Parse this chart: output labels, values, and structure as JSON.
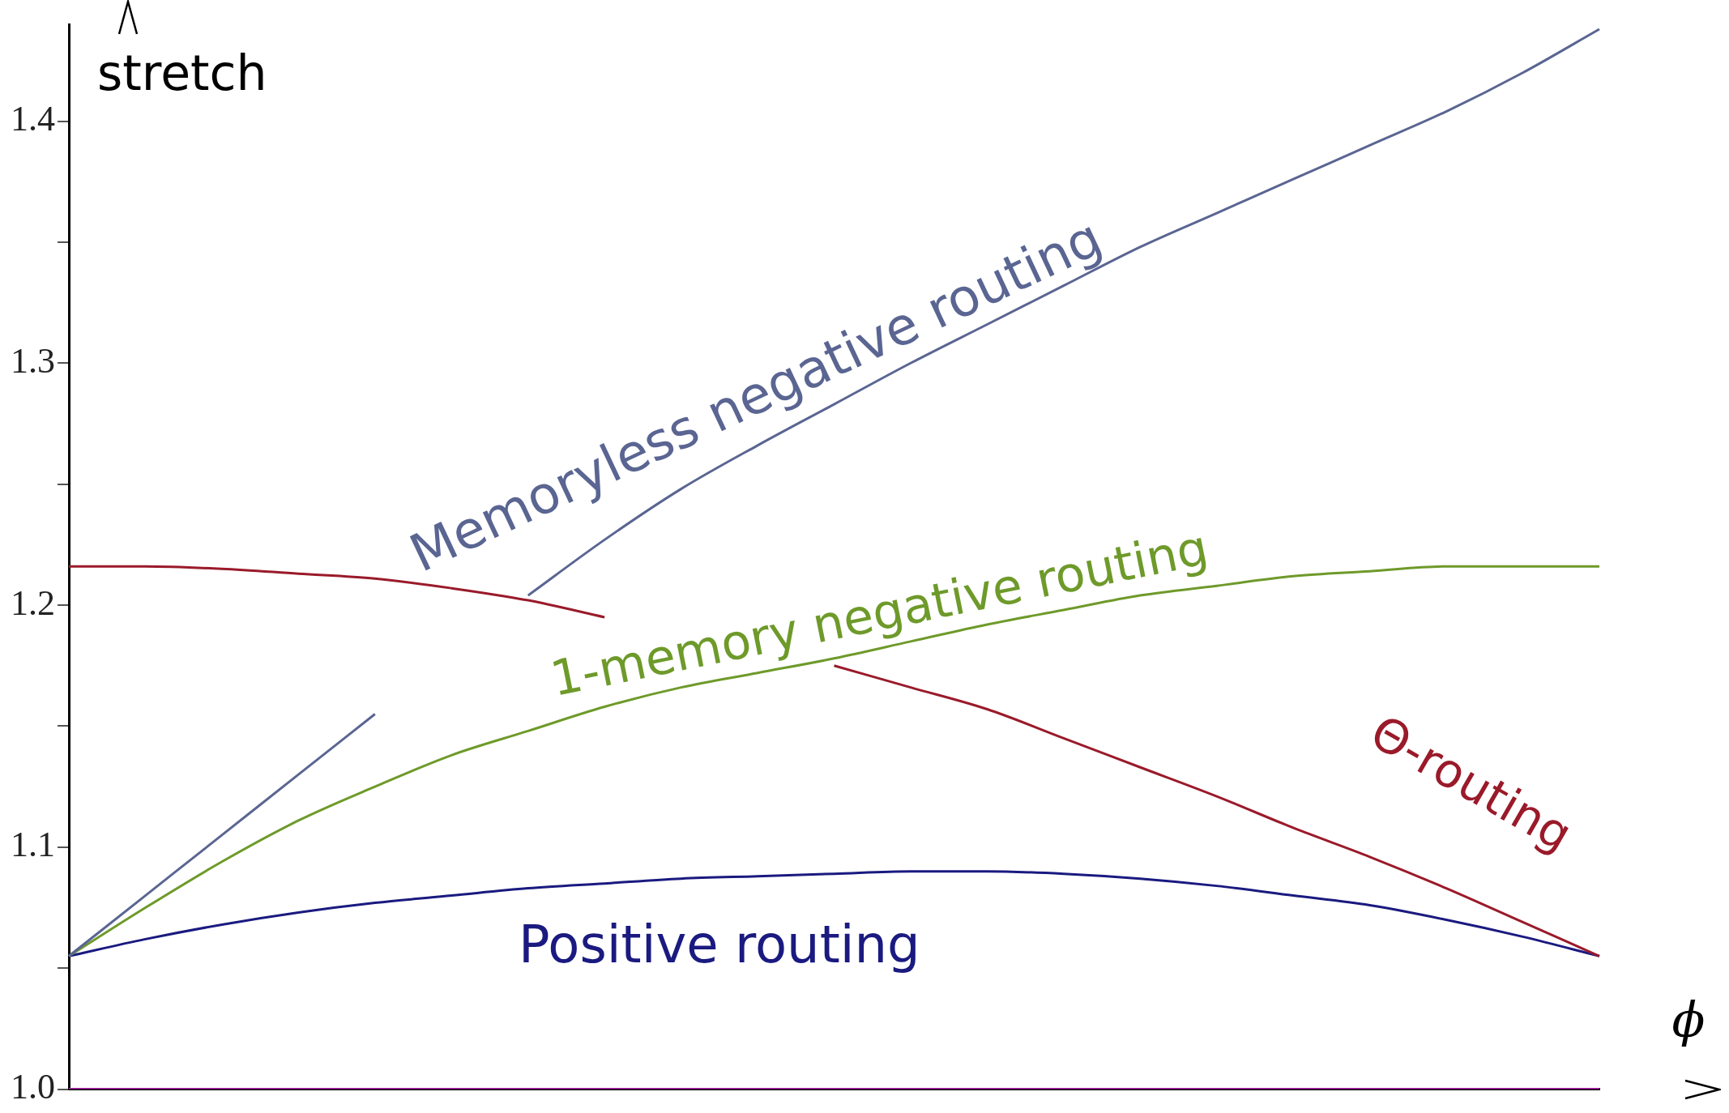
{
  "chart_data": {
    "type": "line",
    "xlabel": "ϕ",
    "ylabel": "stretch",
    "categories": [
      null,
      null,
      null,
      null,
      null,
      null,
      null,
      null,
      null,
      null,
      null,
      null,
      null,
      null,
      null,
      null,
      null,
      null,
      null,
      null,
      null
    ],
    "ylim": [
      1.0,
      1.44
    ],
    "yticks": [
      {
        "value": 1.0,
        "label": "1.0"
      },
      {
        "value": 1.05,
        "label": null
      },
      {
        "value": 1.1,
        "label": "1.1"
      },
      {
        "value": 1.15,
        "label": null
      },
      {
        "value": 1.2,
        "label": "1.2"
      },
      {
        "value": 1.25,
        "label": null
      },
      {
        "value": 1.3,
        "label": "1.3"
      },
      {
        "value": 1.35,
        "label": null
      },
      {
        "value": 1.4,
        "label": "1.4"
      }
    ],
    "tick_labels": "y",
    "grid": false,
    "legend": false,
    "marker": "none",
    "line_style": "solid",
    "series": [
      {
        "name": "Memoryless negative routing",
        "color": "#5a6592",
        "values": [
          1.055,
          1.08,
          1.105,
          1.13,
          1.155,
          null,
          1.204,
          1.227,
          1.248,
          1.266,
          1.283,
          1.3,
          1.316,
          1.332,
          1.348,
          1.362,
          1.376,
          1.39,
          1.404,
          1.42,
          1.438
        ]
      },
      {
        "name": "1-memory negative routing",
        "color": "#6e9a2a",
        "values": [
          1.055,
          1.075,
          1.094,
          1.111,
          1.125,
          1.138,
          1.148,
          1.158,
          1.166,
          1.172,
          1.178,
          1.185,
          1.192,
          1.198,
          1.204,
          1.208,
          1.212,
          1.214,
          1.216,
          1.216,
          1.216
        ]
      },
      {
        "name": "Θ-routing",
        "color": "#9a1a2a",
        "values": [
          1.216,
          1.216,
          1.215,
          1.213,
          1.211,
          1.207,
          1.202,
          1.195,
          null,
          null,
          1.175,
          1.166,
          1.157,
          1.145,
          1.133,
          1.121,
          1.108,
          1.096,
          1.083,
          1.069,
          1.055
        ]
      },
      {
        "name": "Positive routing",
        "color": "#1a1a80",
        "values": [
          1.055,
          1.062,
          1.068,
          1.073,
          1.077,
          1.08,
          1.083,
          1.085,
          1.087,
          1.088,
          1.089,
          1.09,
          1.09,
          1.089,
          1.087,
          1.084,
          1.08,
          1.076,
          1.07,
          1.063,
          1.055
        ]
      },
      {
        "color": "#b020b0",
        "values": [
          1.0,
          1.0,
          1.0,
          1.0,
          1.0,
          1.0,
          1.0,
          1.0,
          1.0,
          1.0,
          1.0,
          1.0,
          1.0,
          1.0,
          1.0,
          1.0,
          1.0,
          1.0,
          1.0,
          1.0,
          1.0
        ]
      }
    ]
  }
}
